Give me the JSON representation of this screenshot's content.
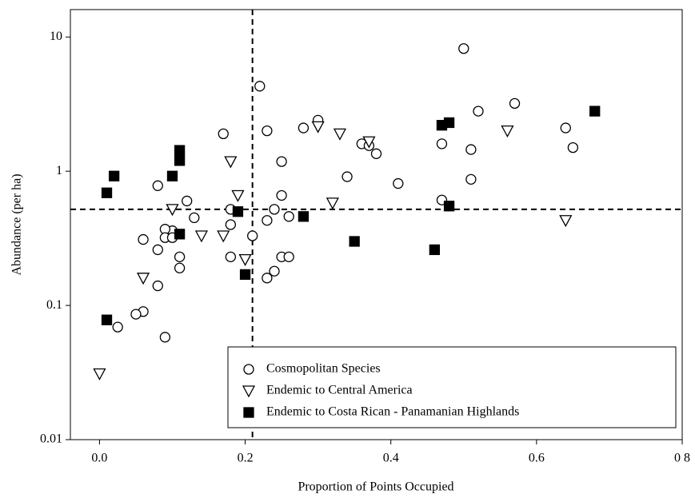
{
  "chart_data": {
    "type": "scatter",
    "xlabel": "Proportion of Points Occupied",
    "ylabel": "Abundance (per ha)",
    "xlim": [
      -0.04,
      0.8
    ],
    "xticks": [
      {
        "value": 0.0,
        "label": "0.0"
      },
      0.2,
      0.4,
      0.6,
      {
        "value": 0.8,
        "label": "0 8"
      }
    ],
    "ylim": [
      0.01,
      16
    ],
    "yticks": [
      0.01,
      0.1,
      1,
      10
    ],
    "ylog": true,
    "vline": 0.21,
    "hline": 0.52,
    "legend_position": "lower right",
    "series": [
      {
        "name": "Cosmopolitan Species",
        "color": "#000000",
        "marker": "circle",
        "filled": false,
        "x": [
          0.5,
          0.22,
          0.3,
          0.28,
          0.17,
          0.23,
          0.57,
          0.52,
          0.64,
          0.36,
          0.37,
          0.38,
          0.65,
          0.51,
          0.47,
          0.51,
          0.41,
          0.34,
          0.25,
          0.08,
          0.12,
          0.18,
          0.25,
          0.24,
          0.26,
          0.23,
          0.18,
          0.13,
          0.1,
          0.09,
          0.09,
          0.1,
          0.06,
          0.08,
          0.11,
          0.11,
          0.18,
          0.21,
          0.25,
          0.26,
          0.23,
          0.24,
          0.47,
          0.08,
          0.06,
          0.05,
          0.025,
          0.09
        ],
        "values": [
          8.2,
          4.3,
          2.4,
          2.1,
          1.9,
          2.0,
          3.2,
          2.8,
          2.1,
          1.6,
          1.55,
          1.35,
          1.5,
          1.45,
          1.6,
          0.87,
          0.81,
          0.91,
          1.18,
          0.78,
          0.6,
          0.52,
          0.66,
          0.52,
          0.46,
          0.43,
          0.4,
          0.45,
          0.36,
          0.37,
          0.32,
          0.32,
          0.31,
          0.26,
          0.23,
          0.19,
          0.23,
          0.33,
          0.23,
          0.23,
          0.16,
          0.18,
          0.61,
          0.14,
          0.09,
          0.086,
          0.069,
          0.058
        ]
      },
      {
        "name": "Endemic to Central America",
        "color": "#000000",
        "marker": "triangle-down",
        "filled": false,
        "x": [
          0.1,
          0.18,
          0.19,
          0.06,
          0.17,
          0.14,
          0.2,
          0.3,
          0.33,
          0.37,
          0.32,
          0.56,
          0.64,
          0.0
        ],
        "values": [
          0.52,
          1.18,
          0.66,
          0.16,
          0.33,
          0.33,
          0.22,
          2.15,
          1.9,
          1.66,
          0.58,
          2.0,
          0.43,
          0.031
        ]
      },
      {
        "name": "Endemic to Costa Rican - Panamanian Highlands",
        "color": "#000000",
        "marker": "square",
        "filled": true,
        "x": [
          0.01,
          0.02,
          0.1,
          0.11,
          0.11,
          0.11,
          0.19,
          0.28,
          0.2,
          0.35,
          0.46,
          0.47,
          0.48,
          0.48,
          0.68,
          0.01
        ],
        "values": [
          0.69,
          0.92,
          0.92,
          1.43,
          1.2,
          0.34,
          0.5,
          0.46,
          0.17,
          0.3,
          0.26,
          2.2,
          2.3,
          0.55,
          2.8,
          0.078
        ]
      }
    ]
  }
}
